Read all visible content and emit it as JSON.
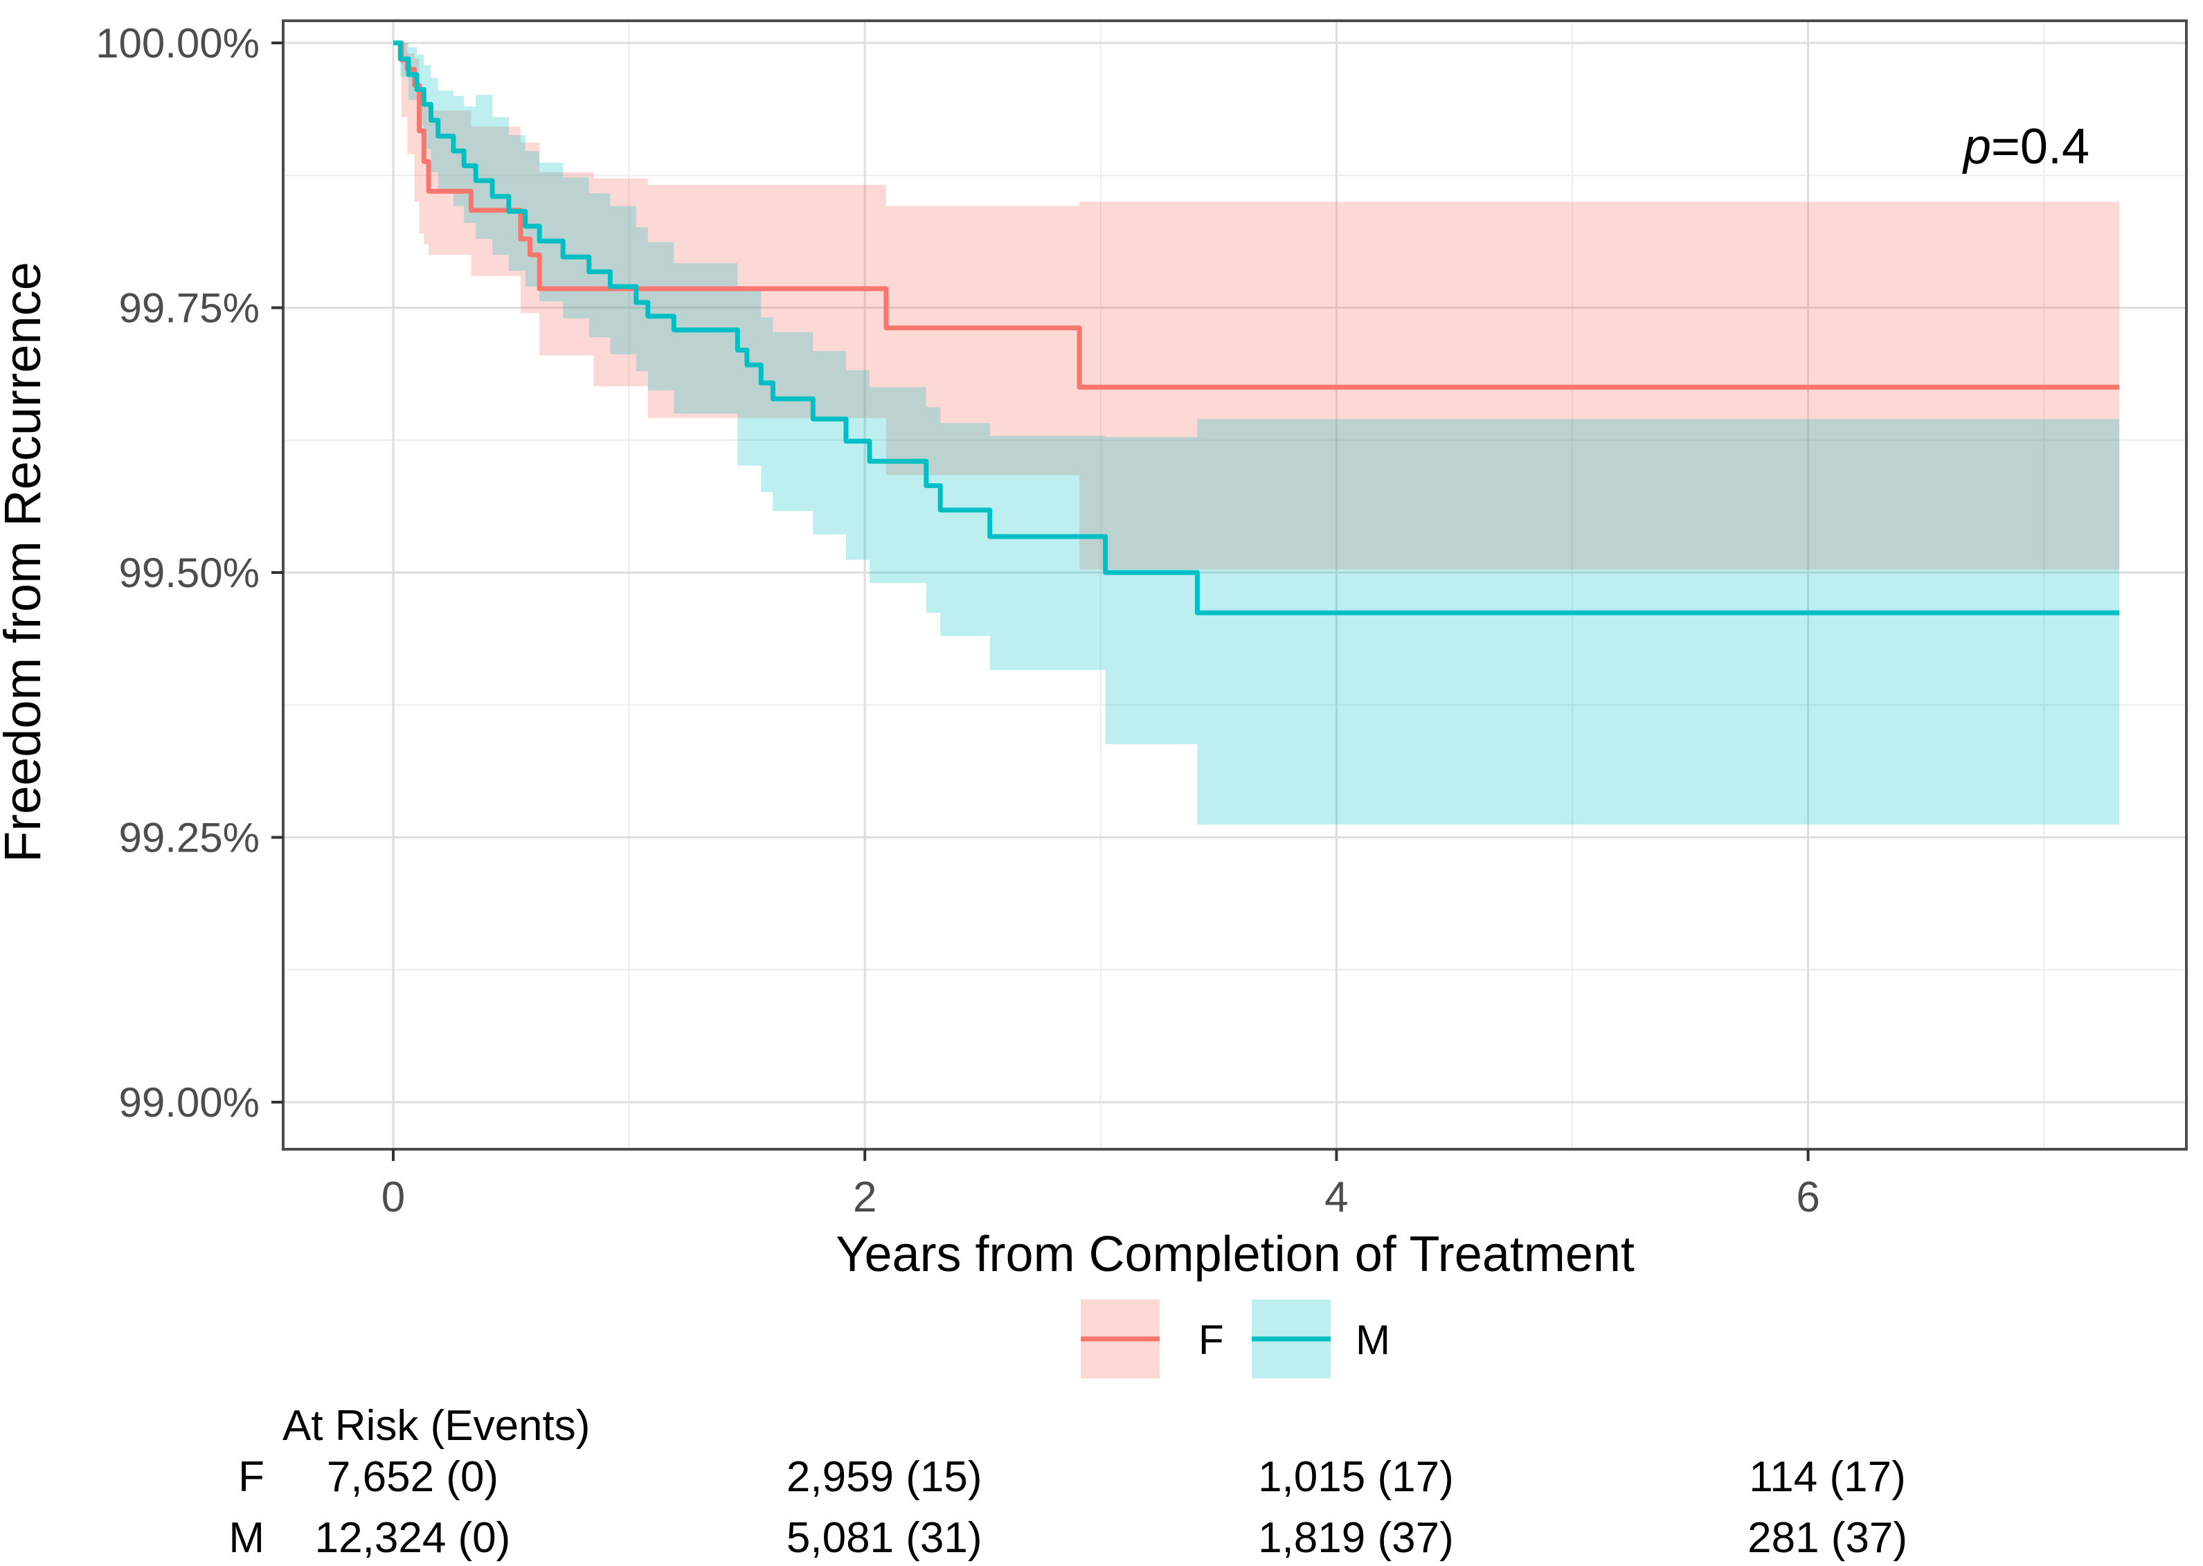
{
  "chart_data": {
    "type": "line",
    "subtype": "kaplan-meier-step-with-confidence-ribbons",
    "title": "",
    "xlabel": "Years from Completion of Treatment",
    "ylabel": "Freedom from Recurrence",
    "annotation": {
      "p_symbol": "p",
      "p_value": "=0.4"
    },
    "x_axis": {
      "ticks": [
        0,
        2,
        4,
        6
      ],
      "tick_labels": [
        "0",
        "2",
        "4",
        "6"
      ],
      "minor_ticks": [
        1,
        3,
        5,
        7
      ],
      "min": -0.47,
      "max": 7.61
    },
    "y_axis": {
      "ticks": [
        100,
        99.75,
        99.5,
        99.25,
        99
      ],
      "tick_labels": [
        "100.00%",
        "99.75%",
        "99.50%",
        "99.25%",
        "99.00%"
      ],
      "minor_ticks": [
        99.875,
        99.625,
        99.375,
        99.125
      ],
      "min": 98.96,
      "max": 100.02
    },
    "grid": "on",
    "legend_position": "bottom",
    "end_time": 7.32,
    "series": [
      {
        "name": "F",
        "line_color": "#F8766D",
        "fill_color": "rgba(248,118,109,0.28)",
        "steps": [
          [
            0,
            100
          ],
          [
            0.035,
            99.984
          ],
          [
            0.06,
            99.975
          ],
          [
            0.09,
            99.96
          ],
          [
            0.11,
            99.917
          ],
          [
            0.13,
            99.888
          ],
          [
            0.15,
            99.86
          ],
          [
            0.33,
            99.842
          ],
          [
            0.54,
            99.815
          ],
          [
            0.58,
            99.8
          ],
          [
            0.62,
            99.768
          ],
          [
            2.09,
            99.731
          ],
          [
            2.91,
            99.675
          ]
        ],
        "ribbon": [
          [
            0,
            100,
            100
          ],
          [
            0.035,
            100,
            99.93
          ],
          [
            0.06,
            99.99,
            99.895
          ],
          [
            0.09,
            99.985,
            99.85
          ],
          [
            0.11,
            99.95,
            99.82
          ],
          [
            0.13,
            99.94,
            99.81
          ],
          [
            0.15,
            99.936,
            99.8
          ],
          [
            0.33,
            99.921,
            99.78
          ],
          [
            0.54,
            99.906,
            99.745
          ],
          [
            0.62,
            99.878,
            99.705
          ],
          [
            0.85,
            99.872,
            99.676
          ],
          [
            1.08,
            99.866,
            99.646
          ],
          [
            2.09,
            99.846,
            99.592
          ],
          [
            2.91,
            99.85,
            99.503
          ]
        ]
      },
      {
        "name": "M",
        "line_color": "#00BFC4",
        "fill_color": "rgba(0,191,196,0.26)",
        "steps": [
          [
            0,
            100
          ],
          [
            0.03,
            99.985
          ],
          [
            0.065,
            99.97
          ],
          [
            0.1,
            99.956
          ],
          [
            0.13,
            99.942
          ],
          [
            0.16,
            99.927
          ],
          [
            0.19,
            99.912
          ],
          [
            0.255,
            99.898
          ],
          [
            0.3,
            99.884
          ],
          [
            0.35,
            99.87
          ],
          [
            0.42,
            99.855
          ],
          [
            0.49,
            99.841
          ],
          [
            0.56,
            99.827
          ],
          [
            0.62,
            99.813
          ],
          [
            0.72,
            99.798
          ],
          [
            0.83,
            99.784
          ],
          [
            0.92,
            99.77
          ],
          [
            1.03,
            99.755
          ],
          [
            1.08,
            99.742
          ],
          [
            1.19,
            99.729
          ],
          [
            1.46,
            99.71
          ],
          [
            1.5,
            99.696
          ],
          [
            1.56,
            99.679
          ],
          [
            1.61,
            99.664
          ],
          [
            1.78,
            99.645
          ],
          [
            1.92,
            99.624
          ],
          [
            2.02,
            99.605
          ],
          [
            2.26,
            99.582
          ],
          [
            2.32,
            99.559
          ],
          [
            2.53,
            99.534
          ],
          [
            3.02,
            99.5
          ],
          [
            3.41,
            99.462
          ]
        ],
        "ribbon": [
          [
            0,
            100,
            100
          ],
          [
            0.03,
            100,
            99.968
          ],
          [
            0.065,
            99.996,
            99.946
          ],
          [
            0.1,
            99.989,
            99.922
          ],
          [
            0.13,
            99.979,
            99.9
          ],
          [
            0.16,
            99.967,
            99.878
          ],
          [
            0.19,
            99.955,
            99.862
          ],
          [
            0.255,
            99.95,
            99.846
          ],
          [
            0.3,
            99.94,
            99.83
          ],
          [
            0.35,
            99.951,
            99.815
          ],
          [
            0.42,
            99.93,
            99.8
          ],
          [
            0.49,
            99.913,
            99.785
          ],
          [
            0.56,
            99.898,
            99.77
          ],
          [
            0.62,
            99.887,
            99.756
          ],
          [
            0.72,
            99.873,
            99.74
          ],
          [
            0.83,
            99.858,
            99.722
          ],
          [
            0.92,
            99.846,
            99.706
          ],
          [
            1.03,
            99.826,
            99.69
          ],
          [
            1.08,
            99.812,
            99.672
          ],
          [
            1.19,
            99.792,
            99.65
          ],
          [
            1.46,
            99.769,
            99.601
          ],
          [
            1.56,
            99.741,
            99.576
          ],
          [
            1.61,
            99.727,
            99.558
          ],
          [
            1.78,
            99.709,
            99.536
          ],
          [
            1.92,
            99.691,
            99.512
          ],
          [
            2.02,
            99.675,
            99.49
          ],
          [
            2.26,
            99.656,
            99.462
          ],
          [
            2.32,
            99.641,
            99.44
          ],
          [
            2.53,
            99.629,
            99.408
          ],
          [
            3.02,
            99.628,
            99.338
          ],
          [
            3.41,
            99.645,
            99.262
          ]
        ]
      }
    ],
    "legend": {
      "entries": [
        {
          "label": "F",
          "line_color": "#F8766D",
          "fill_color": "rgba(248,118,109,0.28)"
        },
        {
          "label": "M",
          "line_color": "#00BFC4",
          "fill_color": "rgba(0,191,196,0.26)"
        }
      ]
    },
    "risk_table": {
      "title": "At Risk (Events)",
      "time_points": [
        0,
        2,
        4,
        6
      ],
      "rows": [
        {
          "label": "F",
          "values": [
            "7,652 (0)",
            "2,959 (15)",
            "1,015 (17)",
            "114 (17)"
          ]
        },
        {
          "label": "M",
          "values": [
            "12,324 (0)",
            "5,081 (31)",
            "1,819 (37)",
            "281 (37)"
          ]
        }
      ]
    }
  }
}
